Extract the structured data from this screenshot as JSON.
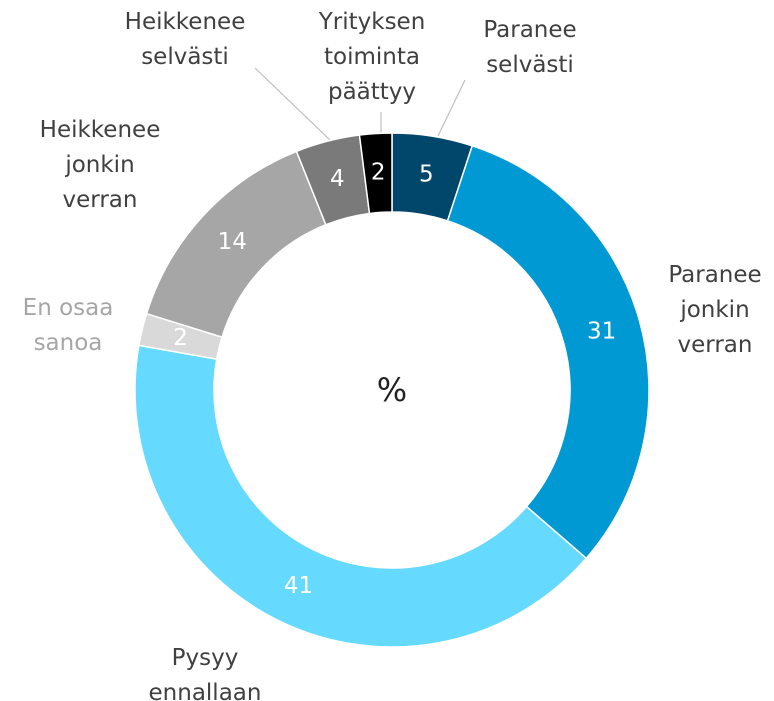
{
  "chart_data": {
    "type": "donut",
    "center_label": "%",
    "categories": [
      [
        "Paranee",
        "selvästi"
      ],
      [
        "Paranee",
        "jonkin",
        "verran"
      ],
      [
        "Pysyy",
        "ennallaan"
      ],
      [
        "En osaa",
        "sanoa"
      ],
      [
        "Heikkenee",
        "jonkin",
        "verran"
      ],
      [
        "Heikkenee",
        "selvästi"
      ],
      [
        "Yrityksen",
        "toiminta",
        "päättyy"
      ]
    ],
    "values": [
      5,
      31,
      41,
      2,
      14,
      4,
      2
    ],
    "colors": [
      "#00476b",
      "#0099d4",
      "#66d9ff",
      "#d9d9d9",
      "#a6a6a6",
      "#7a7a7a",
      "#000000"
    ],
    "label_colors": [
      "#404040",
      "#404040",
      "#404040",
      "#a6a6a6",
      "#404040",
      "#404040",
      "#404040"
    ]
  }
}
